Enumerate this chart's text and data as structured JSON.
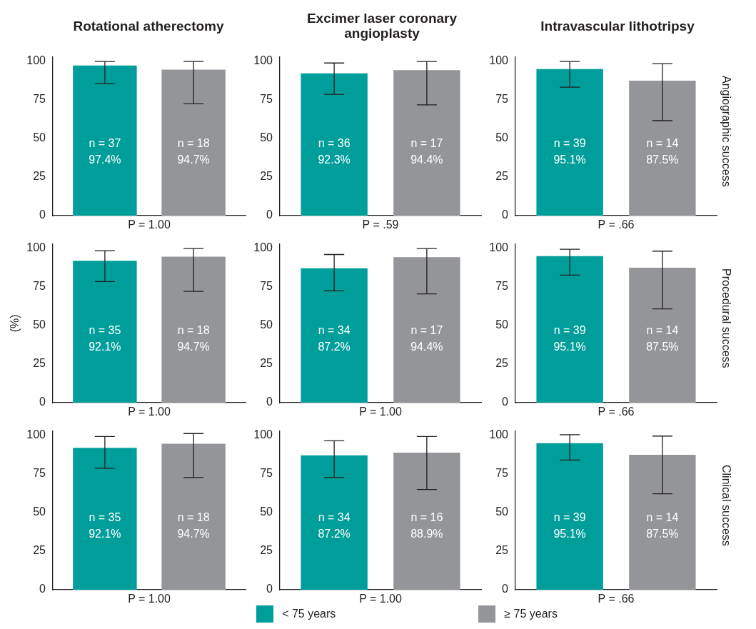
{
  "chart_data": [
    {
      "type": "bar",
      "title": "Rotational atherectomy",
      "categories": [
        null
      ],
      "ylim": [
        0,
        103
      ],
      "yticks": [
        0,
        25,
        50,
        75,
        100
      ],
      "tick_labels": "y",
      "annotations": [
        "P = 1.00"
      ],
      "series": [
        {
          "color": "#009e9a",
          "values": [
            97.4
          ],
          "errors": [
            [
              85.6,
              100
            ]
          ],
          "value_labels": [
            "n = 37\n97.4%"
          ]
        },
        {
          "color": "#939598",
          "values": [
            94.7
          ],
          "errors": [
            [
              72.5,
              100
            ]
          ],
          "value_labels": [
            "n = 18\n94.7%"
          ]
        }
      ]
    },
    {
      "type": "bar",
      "title": "Excimer laser coronary angioplasty",
      "categories": [
        null
      ],
      "ylim": [
        0,
        103
      ],
      "yticks": [
        0,
        25,
        50,
        75,
        100
      ],
      "tick_labels": "y",
      "annotations": [
        "P = .59"
      ],
      "series": [
        {
          "color": "#009e9a",
          "values": [
            92.3
          ],
          "errors": [
            [
              78.7,
              99
            ]
          ],
          "value_labels": [
            "n = 36\n92.3%"
          ]
        },
        {
          "color": "#939598",
          "values": [
            94.4
          ],
          "errors": [
            [
              71.8,
              100
            ]
          ],
          "value_labels": [
            "n = 17\n94.4%"
          ]
        }
      ]
    },
    {
      "type": "bar",
      "title": "Intravascular lithotripsy",
      "y2label": "Angiographic success",
      "categories": [
        null
      ],
      "ylim": [
        0,
        103
      ],
      "yticks": [
        0,
        25,
        50,
        75,
        100
      ],
      "tick_labels": "y",
      "annotations": [
        "P = .66"
      ],
      "series": [
        {
          "color": "#009e9a",
          "values": [
            95.1
          ],
          "errors": [
            [
              83.3,
              100
            ]
          ],
          "value_labels": [
            "n = 39\n95.1%"
          ]
        },
        {
          "color": "#939598",
          "values": [
            87.5
          ],
          "errors": [
            [
              61.6,
              98.6
            ]
          ],
          "value_labels": [
            "n = 14\n87.5%"
          ]
        }
      ]
    },
    {
      "type": "bar",
      "ylabel": "(%)",
      "categories": [
        null
      ],
      "ylim": [
        0,
        103
      ],
      "yticks": [
        0,
        25,
        50,
        75,
        100
      ],
      "tick_labels": "y",
      "annotations": [
        "P = 1.00"
      ],
      "series": [
        {
          "color": "#009e9a",
          "values": [
            92.1
          ],
          "errors": [
            [
              78.6,
              98.6
            ]
          ],
          "value_labels": [
            "n = 35\n92.1%"
          ]
        },
        {
          "color": "#939598",
          "values": [
            94.7
          ],
          "errors": [
            [
              72.2,
              100
            ]
          ],
          "value_labels": [
            "n = 18\n94.7%"
          ]
        }
      ]
    },
    {
      "type": "bar",
      "categories": [
        null
      ],
      "ylim": [
        0,
        103
      ],
      "yticks": [
        0,
        25,
        50,
        75,
        100
      ],
      "tick_labels": "y",
      "annotations": [
        "P = 1.00"
      ],
      "series": [
        {
          "color": "#009e9a",
          "values": [
            87.2
          ],
          "errors": [
            [
              72.5,
              96.1
            ]
          ],
          "value_labels": [
            "n = 34\n87.2%"
          ]
        },
        {
          "color": "#939598",
          "values": [
            94.4
          ],
          "errors": [
            [
              70.6,
              100
            ]
          ],
          "value_labels": [
            "n = 17\n94.4%"
          ]
        }
      ]
    },
    {
      "type": "bar",
      "y2label": "Procedural success",
      "categories": [
        null
      ],
      "ylim": [
        0,
        103
      ],
      "yticks": [
        0,
        25,
        50,
        75,
        100
      ],
      "tick_labels": "y",
      "annotations": [
        "P = .66"
      ],
      "series": [
        {
          "color": "#009e9a",
          "values": [
            95.1
          ],
          "errors": [
            [
              82.7,
              99.5
            ]
          ],
          "value_labels": [
            "n = 39\n95.1%"
          ]
        },
        {
          "color": "#939598",
          "values": [
            87.5
          ],
          "errors": [
            [
              60.8,
              98.3
            ]
          ],
          "value_labels": [
            "n = 14\n87.5%"
          ]
        }
      ]
    },
    {
      "type": "bar",
      "categories": [
        null
      ],
      "ylim": [
        0,
        103
      ],
      "yticks": [
        0,
        25,
        50,
        75,
        100
      ],
      "tick_labels": "y",
      "annotations": [
        "P = 1.00"
      ],
      "series": [
        {
          "color": "#009e9a",
          "values": [
            92.1
          ],
          "errors": [
            [
              78.8,
              99.4
            ]
          ],
          "value_labels": [
            "n = 35\n92.1%"
          ]
        },
        {
          "color": "#939598",
          "values": [
            94.7
          ],
          "errors": [
            [
              72.8,
              101.3
            ]
          ],
          "value_labels": [
            "n = 18\n94.7%"
          ]
        }
      ]
    },
    {
      "type": "bar",
      "categories": [
        null
      ],
      "ylim": [
        0,
        103
      ],
      "yticks": [
        0,
        25,
        50,
        75,
        100
      ],
      "tick_labels": "y",
      "legend": "bottom",
      "annotations": [
        "P = 1.00"
      ],
      "series": [
        {
          "name": "< 75 years",
          "color": "#009e9a",
          "values": [
            87.2
          ],
          "errors": [
            [
              72.8,
              96.6
            ]
          ],
          "value_labels": [
            "n = 34\n87.2%"
          ]
        },
        {
          "name": "≥ 75 years",
          "color": "#939598",
          "values": [
            88.9
          ],
          "errors": [
            [
              65,
              99.4
            ]
          ],
          "value_labels": [
            "n = 16\n88.9%"
          ]
        }
      ]
    },
    {
      "type": "bar",
      "y2label": "Clinical success",
      "categories": [
        null
      ],
      "ylim": [
        0,
        103
      ],
      "yticks": [
        0,
        25,
        50,
        75,
        100
      ],
      "tick_labels": "y",
      "annotations": [
        "P = .66"
      ],
      "series": [
        {
          "color": "#009e9a",
          "values": [
            95.1
          ],
          "errors": [
            [
              84.1,
              100.6
            ]
          ],
          "value_labels": [
            "n = 39\n95.1%"
          ]
        },
        {
          "color": "#939598",
          "values": [
            87.5
          ],
          "errors": [
            [
              62.2,
              99.7
            ]
          ],
          "value_labels": [
            "n = 14\n87.5%"
          ]
        }
      ]
    }
  ]
}
